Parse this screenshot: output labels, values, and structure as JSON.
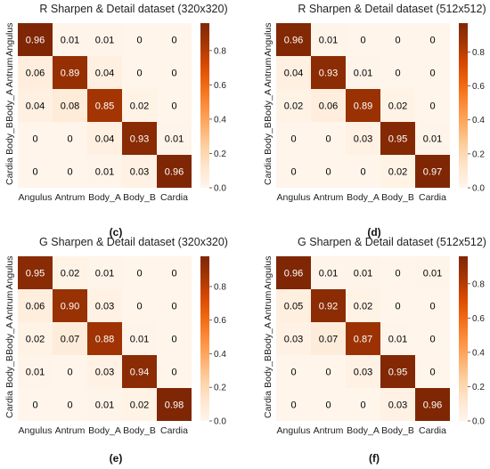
{
  "figure": {
    "panels": [
      {
        "letter": "(c)",
        "title": "R Sharpen & Detail dataset (320x320)"
      },
      {
        "letter": "(d)",
        "title": "R Sharpen & Detail dataset (512x512)"
      },
      {
        "letter": "(e)",
        "title": "G Sharpen & Detail dataset (320x320)"
      },
      {
        "letter": "(f)",
        "title": "G Sharpen & Detail dataset (512x512)"
      }
    ]
  },
  "colors": {
    "colormap": [
      "#fff5eb",
      "#fee6ce",
      "#fdd0a2",
      "#fdae6b",
      "#fd8d3c",
      "#f16913",
      "#d94801",
      "#a63603",
      "#7f2704"
    ],
    "text_light": "#ffffff",
    "text_dark": "#000000"
  },
  "chart_data": [
    {
      "type": "heatmap",
      "title": "R Sharpen & Detail dataset (320x320)",
      "x_categories": [
        "Angulus",
        "Antrum",
        "Body_A",
        "Body_B",
        "Cardia"
      ],
      "y_categories": [
        "Angulus",
        "Antrum",
        "Body_A",
        "Body_B",
        "Cardia"
      ],
      "values": [
        [
          0.96,
          0.01,
          0.01,
          0,
          0
        ],
        [
          0.06,
          0.89,
          0.04,
          0,
          0
        ],
        [
          0.04,
          0.08,
          0.85,
          0.02,
          0
        ],
        [
          0,
          0,
          0.04,
          0.93,
          0.01
        ],
        [
          0,
          0,
          0.01,
          0.03,
          0.96
        ]
      ],
      "cell_labels": [
        [
          "0.96",
          "0.01",
          "0.01",
          "0",
          "0"
        ],
        [
          "0.06",
          "0.89",
          "0.04",
          "0",
          "0"
        ],
        [
          "0.04",
          "0.08",
          "0.85",
          "0.02",
          "0"
        ],
        [
          "0",
          "0",
          "0.04",
          "0.93",
          "0.01"
        ],
        [
          "0",
          "0",
          "0.01",
          "0.03",
          "0.96"
        ]
      ],
      "colorbar": {
        "range": [
          0,
          0.96
        ],
        "ticks": [
          0.0,
          0.2,
          0.4,
          0.6,
          0.8
        ],
        "tick_labels": [
          "0.0",
          "0.2",
          "0.4",
          "0.6",
          "0.8"
        ]
      }
    },
    {
      "type": "heatmap",
      "title": "R Sharpen & Detail dataset (512x512)",
      "x_categories": [
        "Angulus",
        "Antrum",
        "Body_A",
        "Body_B",
        "Cardia"
      ],
      "y_categories": [
        "Angulus",
        "Antrum",
        "Body_A",
        "Body_B",
        "Cardia"
      ],
      "values": [
        [
          0.96,
          0.01,
          0,
          0,
          0
        ],
        [
          0.04,
          0.93,
          0.01,
          0,
          0
        ],
        [
          0.02,
          0.06,
          0.89,
          0.02,
          0
        ],
        [
          0,
          0,
          0.03,
          0.95,
          0.01
        ],
        [
          0,
          0,
          0,
          0.02,
          0.97
        ]
      ],
      "cell_labels": [
        [
          "0.96",
          "0.01",
          "0",
          "0",
          "0"
        ],
        [
          "0.04",
          "0.93",
          "0.01",
          "0",
          "0"
        ],
        [
          "0.02",
          "0.06",
          "0.89",
          "0.02",
          "0"
        ],
        [
          "0",
          "0",
          "0.03",
          "0.95",
          "0.01"
        ],
        [
          "0",
          "0",
          "0",
          "0.02",
          "0.97"
        ]
      ],
      "colorbar": {
        "range": [
          0,
          0.97
        ],
        "ticks": [
          0.0,
          0.2,
          0.4,
          0.6,
          0.8
        ],
        "tick_labels": [
          "0.0",
          "0.2",
          "0.4",
          "0.6",
          "0.8"
        ]
      }
    },
    {
      "type": "heatmap",
      "title": "G Sharpen & Detail dataset (320x320)",
      "x_categories": [
        "Angulus",
        "Antrum",
        "Body_A",
        "Body_B",
        "Cardia"
      ],
      "y_categories": [
        "Angulus",
        "Antrum",
        "Body_A",
        "Body_B",
        "Cardia"
      ],
      "values": [
        [
          0.95,
          0.02,
          0.01,
          0,
          0
        ],
        [
          0.06,
          0.9,
          0.03,
          0,
          0
        ],
        [
          0.02,
          0.07,
          0.88,
          0.01,
          0
        ],
        [
          0.01,
          0,
          0.03,
          0.94,
          0
        ],
        [
          0,
          0,
          0.01,
          0.02,
          0.98
        ]
      ],
      "cell_labels": [
        [
          "0.95",
          "0.02",
          "0.01",
          "0",
          "0"
        ],
        [
          "0.06",
          "0.90",
          "0.03",
          "0",
          "0"
        ],
        [
          "0.02",
          "0.07",
          "0.88",
          "0.01",
          "0"
        ],
        [
          "0.01",
          "0",
          "0.03",
          "0.94",
          "0"
        ],
        [
          "0",
          "0",
          "0.01",
          "0.02",
          "0.98"
        ]
      ],
      "colorbar": {
        "range": [
          0,
          0.98
        ],
        "ticks": [
          0.0,
          0.2,
          0.4,
          0.6,
          0.8
        ],
        "tick_labels": [
          "0.0",
          "0.2",
          "0.4",
          "0.6",
          "0.8"
        ]
      }
    },
    {
      "type": "heatmap",
      "title": "G Sharpen & Detail dataset (512x512)",
      "x_categories": [
        "Angulus",
        "Antrum",
        "Body_A",
        "Body_B",
        "Cardia"
      ],
      "y_categories": [
        "Angulus",
        "Antrum",
        "Body_A",
        "Body_B",
        "Cardia"
      ],
      "values": [
        [
          0.96,
          0.01,
          0.01,
          0,
          0.01
        ],
        [
          0.05,
          0.92,
          0.02,
          0,
          0
        ],
        [
          0.03,
          0.07,
          0.87,
          0.01,
          0
        ],
        [
          0,
          0,
          0.03,
          0.95,
          0
        ],
        [
          0,
          0,
          0,
          0.03,
          0.96
        ]
      ],
      "cell_labels": [
        [
          "0.96",
          "0.01",
          "0.01",
          "0",
          "0.01"
        ],
        [
          "0.05",
          "0.92",
          "0.02",
          "0",
          "0"
        ],
        [
          "0.03",
          "0.07",
          "0.87",
          "0.01",
          "0"
        ],
        [
          "0",
          "0",
          "0.03",
          "0.95",
          "0"
        ],
        [
          "0",
          "0",
          "0",
          "0.03",
          "0.96"
        ]
      ],
      "colorbar": {
        "range": [
          0,
          0.96
        ],
        "ticks": [
          0.0,
          0.2,
          0.4,
          0.6,
          0.8
        ],
        "tick_labels": [
          "0.0",
          "0.2",
          "0.4",
          "0.6",
          "0.8"
        ]
      }
    }
  ]
}
